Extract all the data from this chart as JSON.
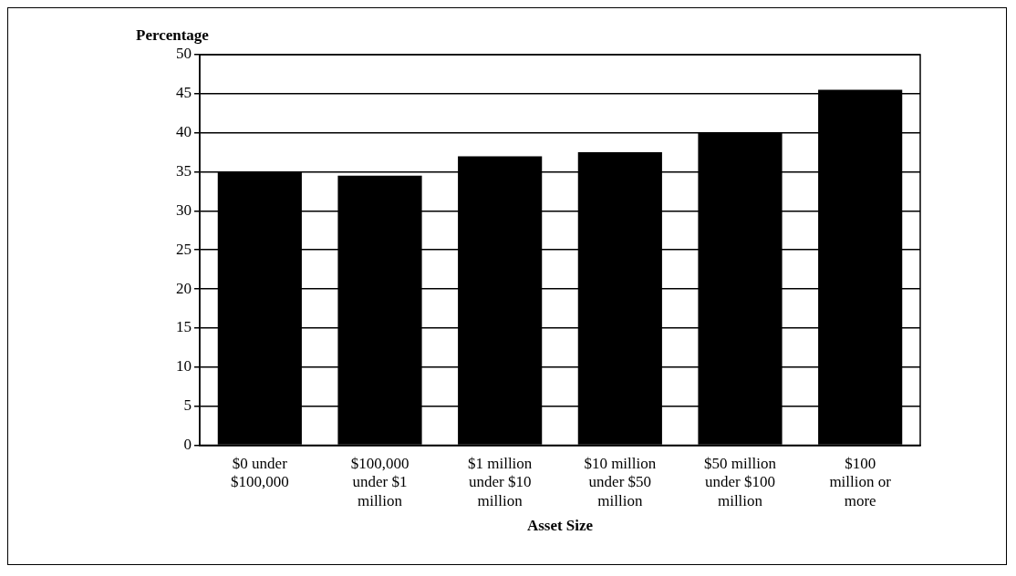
{
  "chart_data": {
    "type": "bar",
    "ylabel": "Percentage",
    "xlabel": "Asset Size",
    "categories": [
      [
        "$0 under",
        "$100,000"
      ],
      [
        "$100,000",
        "under $1",
        "million"
      ],
      [
        "$1 million",
        "under $10",
        "million"
      ],
      [
        "$10 million",
        "under $50",
        "million"
      ],
      [
        "$50 million",
        "under $100",
        "million"
      ],
      [
        "$100",
        "million or",
        "more"
      ]
    ],
    "values": [
      35,
      34.5,
      37,
      37.5,
      40,
      45.5
    ],
    "color": "#000000",
    "ylim": [
      0,
      50
    ],
    "yticks": [
      0,
      5,
      10,
      15,
      20,
      25,
      30,
      35,
      40,
      45,
      50
    ],
    "grid": "y",
    "legend": false
  }
}
